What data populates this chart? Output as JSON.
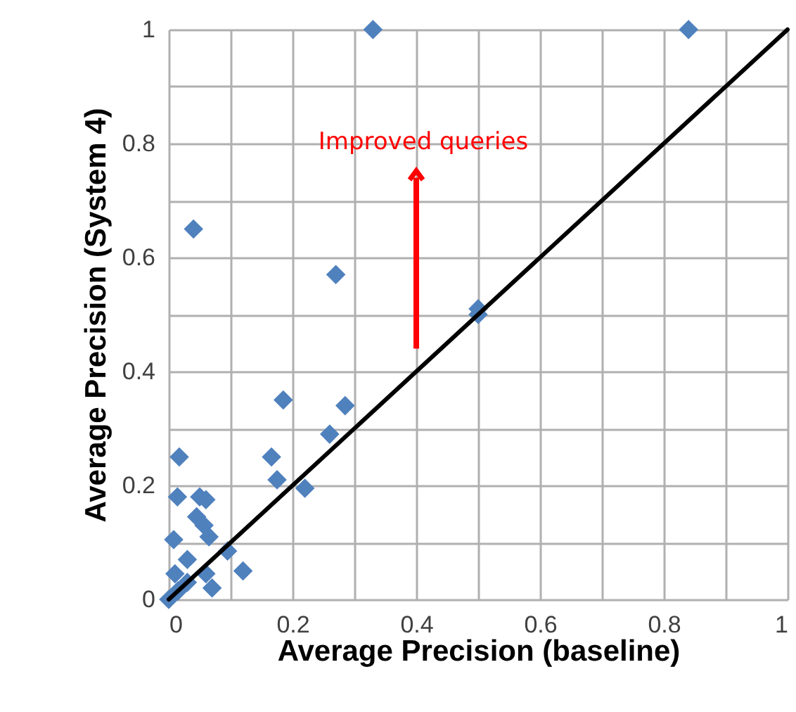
{
  "chart_data": {
    "type": "scatter",
    "xlabel": "Average Precision (baseline)",
    "ylabel": "Average Precision  (System 4)",
    "xlim": [
      0,
      1
    ],
    "ylim": [
      0,
      1
    ],
    "xticks": [
      0,
      {
        "value": 0.1,
        "label": null
      },
      0.2,
      {
        "value": 0.3,
        "label": null
      },
      0.4,
      {
        "value": 0.5,
        "label": null
      },
      0.6,
      {
        "value": 0.7,
        "label": null
      },
      0.8,
      {
        "value": 0.9,
        "label": null
      },
      1
    ],
    "yticks": [
      0,
      {
        "value": 0.1,
        "label": null
      },
      0.2,
      {
        "value": 0.3,
        "label": null
      },
      0.4,
      {
        "value": 0.5,
        "label": null
      },
      0.6,
      {
        "value": 0.7,
        "label": null
      },
      0.8,
      {
        "value": 0.9,
        "label": null
      },
      1
    ],
    "grid": true,
    "marker": "diamond",
    "series": [
      {
        "color": "#4f81bd",
        "x": [
          0.33,
          0.84,
          0.04,
          0.27,
          0.5,
          0.5,
          0.185,
          0.285,
          0.26,
          0.017,
          0.166,
          0.175,
          0.22,
          0.014,
          0.05,
          0.06,
          0.045,
          0.057,
          0.065,
          0.008,
          0.095,
          0.12,
          0.03,
          0.01,
          0.06,
          0.07,
          0,
          0.015,
          0.03
        ],
        "values": [
          1,
          1,
          0.65,
          0.57,
          0.51,
          0.5,
          0.35,
          0.34,
          0.29,
          0.25,
          0.25,
          0.21,
          0.195,
          0.18,
          0.18,
          0.175,
          0.145,
          0.13,
          0.11,
          0.105,
          0.085,
          0.05,
          0.07,
          0.045,
          0.045,
          0.02,
          0,
          0.015,
          0.03
        ]
      },
      {
        "type": "line",
        "color": "#000000",
        "x": [
          0,
          1
        ],
        "values": [
          0,
          1
        ],
        "marker": "none"
      }
    ],
    "annotations": [
      "Improved  queries"
    ]
  }
}
